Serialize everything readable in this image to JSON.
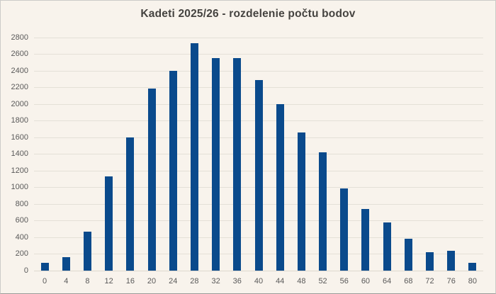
{
  "chart_data": {
    "type": "bar",
    "title": "Kadeti 2025/26 - rozdelenie počtu bodov",
    "categories": [
      "0",
      "4",
      "8",
      "12",
      "16",
      "20",
      "24",
      "28",
      "32",
      "36",
      "40",
      "44",
      "48",
      "52",
      "56",
      "60",
      "64",
      "68",
      "72",
      "76",
      "80"
    ],
    "values": [
      90,
      160,
      470,
      1130,
      1600,
      2190,
      2400,
      2730,
      2550,
      2550,
      2290,
      2000,
      1660,
      1420,
      990,
      740,
      580,
      380,
      220,
      240,
      90
    ],
    "xlabel": "",
    "ylabel": "",
    "ylim": [
      0,
      2800
    ],
    "ytick_step": 200,
    "grid": true,
    "legend": false,
    "colors": {
      "bar": "#0a4a8c",
      "background": "#f8f3ec",
      "gridline": "#e4e0d7",
      "tick_label": "#595959",
      "title": "#454340"
    }
  }
}
